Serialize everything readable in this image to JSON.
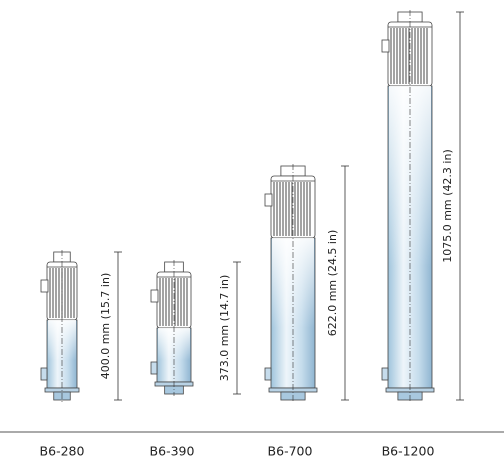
{
  "items": [
    {
      "name": "B6-280",
      "dimension": "400.0 mm (15.7 in)"
    },
    {
      "name": "B6-390",
      "dimension": "373.0 mm (14.7 in)"
    },
    {
      "name": "B6-700",
      "dimension": "622.0 mm (24.5 in)"
    },
    {
      "name": "B6-1200",
      "dimension": "1075.0 mm (42.3 in)"
    }
  ]
}
